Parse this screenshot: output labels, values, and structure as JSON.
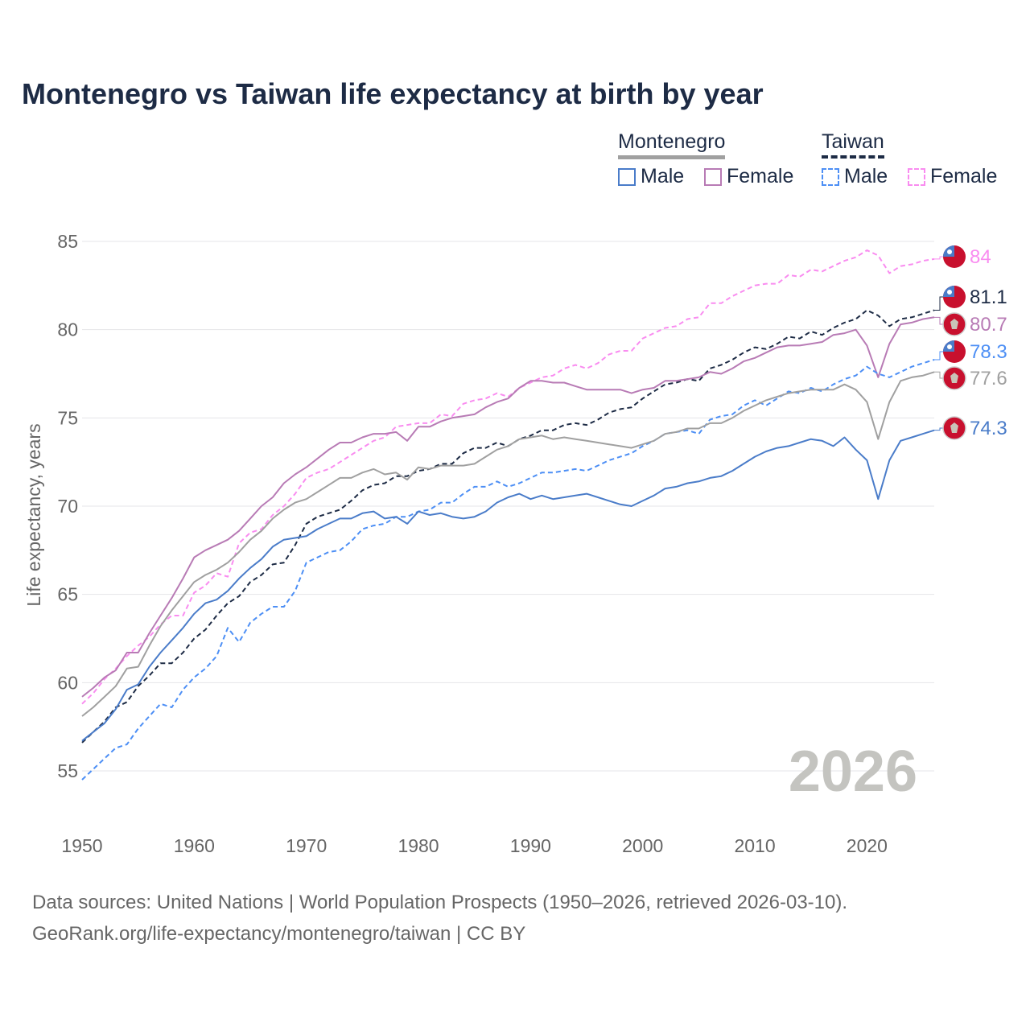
{
  "chart_data": {
    "type": "line",
    "title": "Montenegro vs Taiwan life expectancy at birth by year",
    "xlabel": "",
    "ylabel": "Life expectancy, years",
    "xlim": [
      1950,
      2026
    ],
    "ylim": [
      53,
      86
    ],
    "x_ticks": [
      "1950",
      "1960",
      "1970",
      "1980",
      "1990",
      "2000",
      "2010",
      "2020"
    ],
    "y_ticks": [
      "55",
      "60",
      "65",
      "70",
      "75",
      "80",
      "85"
    ],
    "grid": true,
    "year_watermark": "2026",
    "legend": {
      "placement": "top-right",
      "groups": [
        {
          "country": "Montenegro",
          "items": [
            "Male",
            "Female"
          ]
        },
        {
          "country": "Taiwan",
          "items": [
            "Male",
            "Female"
          ]
        }
      ]
    },
    "start_year": 1950,
    "series": [
      {
        "name": "Taiwan Female",
        "country": "Taiwan",
        "style": "dashed",
        "color": "#f98cf0",
        "end_label": "84",
        "values": [
          58.8,
          59.4,
          60.2,
          60.8,
          61.5,
          62.1,
          62.6,
          63.3,
          63.8,
          63.8,
          65.1,
          65.5,
          66.2,
          66.0,
          67.9,
          68.5,
          68.7,
          69.5,
          70.0,
          70.7,
          71.6,
          71.9,
          72.1,
          72.5,
          72.9,
          73.3,
          73.7,
          73.9,
          74.5,
          74.6,
          74.7,
          74.7,
          75.2,
          75.1,
          75.8,
          76.0,
          76.1,
          76.4,
          76.2,
          76.7,
          77.0,
          77.3,
          77.4,
          77.8,
          78.0,
          77.8,
          78.1,
          78.6,
          78.8,
          78.8,
          79.5,
          79.8,
          80.1,
          80.2,
          80.6,
          80.7,
          81.5,
          81.5,
          81.9,
          82.2,
          82.5,
          82.6,
          82.6,
          83.1,
          83.0,
          83.4,
          83.3,
          83.6,
          83.9,
          84.1,
          84.5,
          84.2,
          83.2,
          83.6,
          83.7,
          83.9,
          84.0
        ]
      },
      {
        "name": "Taiwan",
        "country": "Taiwan",
        "style": "dashed",
        "color": "#1d2b45",
        "end_label": "81.1",
        "values": [
          56.6,
          57.2,
          57.8,
          58.6,
          58.9,
          59.8,
          60.4,
          61.1,
          61.1,
          61.7,
          62.5,
          63.0,
          63.8,
          64.5,
          64.9,
          65.7,
          66.1,
          66.7,
          66.8,
          67.8,
          69.0,
          69.4,
          69.6,
          69.8,
          70.3,
          70.9,
          71.2,
          71.3,
          71.7,
          71.7,
          72.0,
          72.1,
          72.4,
          72.4,
          73.0,
          73.3,
          73.3,
          73.6,
          73.4,
          73.8,
          74.0,
          74.3,
          74.3,
          74.6,
          74.7,
          74.6,
          74.9,
          75.3,
          75.5,
          75.6,
          76.1,
          76.5,
          76.9,
          77.0,
          77.2,
          77.1,
          77.8,
          78.0,
          78.3,
          78.7,
          79.0,
          78.9,
          79.2,
          79.6,
          79.5,
          79.9,
          79.7,
          80.1,
          80.4,
          80.6,
          81.1,
          80.8,
          80.2,
          80.6,
          80.7,
          80.9,
          81.1
        ]
      },
      {
        "name": "Montenegro Female",
        "country": "Montenegro",
        "style": "solid",
        "color": "#b87bb5",
        "end_label": "80.7",
        "values": [
          59.2,
          59.7,
          60.3,
          60.7,
          61.7,
          61.7,
          62.8,
          63.8,
          64.8,
          65.9,
          67.1,
          67.5,
          67.8,
          68.1,
          68.6,
          69.3,
          70.0,
          70.5,
          71.3,
          71.8,
          72.2,
          72.7,
          73.2,
          73.6,
          73.6,
          73.9,
          74.1,
          74.1,
          74.2,
          73.7,
          74.5,
          74.5,
          74.8,
          75.0,
          75.1,
          75.2,
          75.6,
          75.9,
          76.1,
          76.7,
          77.1,
          77.1,
          77.0,
          77.0,
          76.8,
          76.6,
          76.6,
          76.6,
          76.6,
          76.4,
          76.6,
          76.7,
          77.1,
          77.1,
          77.2,
          77.3,
          77.6,
          77.5,
          77.8,
          78.2,
          78.4,
          78.7,
          79.0,
          79.1,
          79.1,
          79.2,
          79.3,
          79.7,
          79.8,
          80.0,
          79.1,
          77.3,
          79.2,
          80.3,
          80.4,
          80.6,
          80.7
        ]
      },
      {
        "name": "Taiwan Male",
        "country": "Taiwan",
        "style": "dashed",
        "color": "#4d8ff5",
        "end_label": "78.3",
        "values": [
          54.5,
          55.1,
          55.7,
          56.3,
          56.5,
          57.4,
          58.1,
          58.8,
          58.6,
          59.6,
          60.3,
          60.8,
          61.5,
          63.1,
          62.3,
          63.4,
          63.9,
          64.3,
          64.3,
          65.2,
          66.8,
          67.1,
          67.4,
          67.5,
          68.0,
          68.7,
          68.9,
          69.0,
          69.4,
          69.4,
          69.7,
          69.8,
          70.2,
          70.2,
          70.7,
          71.1,
          71.1,
          71.4,
          71.1,
          71.3,
          71.6,
          71.9,
          71.9,
          72.0,
          72.1,
          72.0,
          72.3,
          72.6,
          72.8,
          73.0,
          73.4,
          73.7,
          74.1,
          74.2,
          74.3,
          74.1,
          74.9,
          75.1,
          75.2,
          75.7,
          76.0,
          75.7,
          76.1,
          76.5,
          76.4,
          76.7,
          76.5,
          76.9,
          77.2,
          77.4,
          77.9,
          77.5,
          77.3,
          77.6,
          77.9,
          78.1,
          78.3
        ]
      },
      {
        "name": "Montenegro",
        "country": "Montenegro",
        "style": "solid",
        "color": "#a0a0a0",
        "end_label": "77.6",
        "values": [
          58.1,
          58.6,
          59.2,
          59.8,
          60.8,
          60.9,
          62.1,
          63.2,
          64.1,
          64.9,
          65.7,
          66.1,
          66.4,
          66.8,
          67.4,
          68.1,
          68.6,
          69.3,
          69.8,
          70.2,
          70.4,
          70.8,
          71.2,
          71.6,
          71.6,
          71.9,
          72.1,
          71.8,
          71.9,
          71.5,
          72.2,
          72.1,
          72.3,
          72.3,
          72.3,
          72.4,
          72.8,
          73.2,
          73.4,
          73.8,
          73.9,
          74.0,
          73.8,
          73.9,
          73.8,
          73.7,
          73.6,
          73.5,
          73.4,
          73.3,
          73.5,
          73.7,
          74.1,
          74.2,
          74.4,
          74.4,
          74.7,
          74.7,
          75.0,
          75.4,
          75.7,
          76.0,
          76.2,
          76.4,
          76.5,
          76.6,
          76.6,
          76.6,
          76.9,
          76.6,
          75.9,
          73.8,
          75.9,
          77.1,
          77.3,
          77.4,
          77.6
        ]
      },
      {
        "name": "Montenegro Male",
        "country": "Montenegro",
        "style": "solid",
        "color": "#4a7cc9",
        "end_label": "74.3",
        "values": [
          56.7,
          57.2,
          57.7,
          58.5,
          59.6,
          59.9,
          60.9,
          61.7,
          62.4,
          63.1,
          63.9,
          64.5,
          64.7,
          65.2,
          65.9,
          66.5,
          67.0,
          67.7,
          68.1,
          68.2,
          68.3,
          68.7,
          69.0,
          69.3,
          69.3,
          69.6,
          69.7,
          69.3,
          69.4,
          69.0,
          69.7,
          69.5,
          69.6,
          69.4,
          69.3,
          69.4,
          69.7,
          70.2,
          70.5,
          70.7,
          70.4,
          70.6,
          70.4,
          70.5,
          70.6,
          70.7,
          70.5,
          70.3,
          70.1,
          70.0,
          70.3,
          70.6,
          71.0,
          71.1,
          71.3,
          71.4,
          71.6,
          71.7,
          72.0,
          72.4,
          72.8,
          73.1,
          73.3,
          73.4,
          73.6,
          73.8,
          73.7,
          73.4,
          73.9,
          73.2,
          72.6,
          70.4,
          72.6,
          73.7,
          73.9,
          74.1,
          74.3
        ]
      }
    ]
  },
  "legend_labels": {
    "montenegro": "Montenegro",
    "taiwan": "Taiwan",
    "male": "Male",
    "female": "Female"
  },
  "footer": {
    "line1": "Data sources: United Nations | World Population Prospects (1950–2026, retrieved 2026-03-10).",
    "line2": "GeoRank.org/life-expectancy/montenegro/taiwan | CC BY"
  }
}
